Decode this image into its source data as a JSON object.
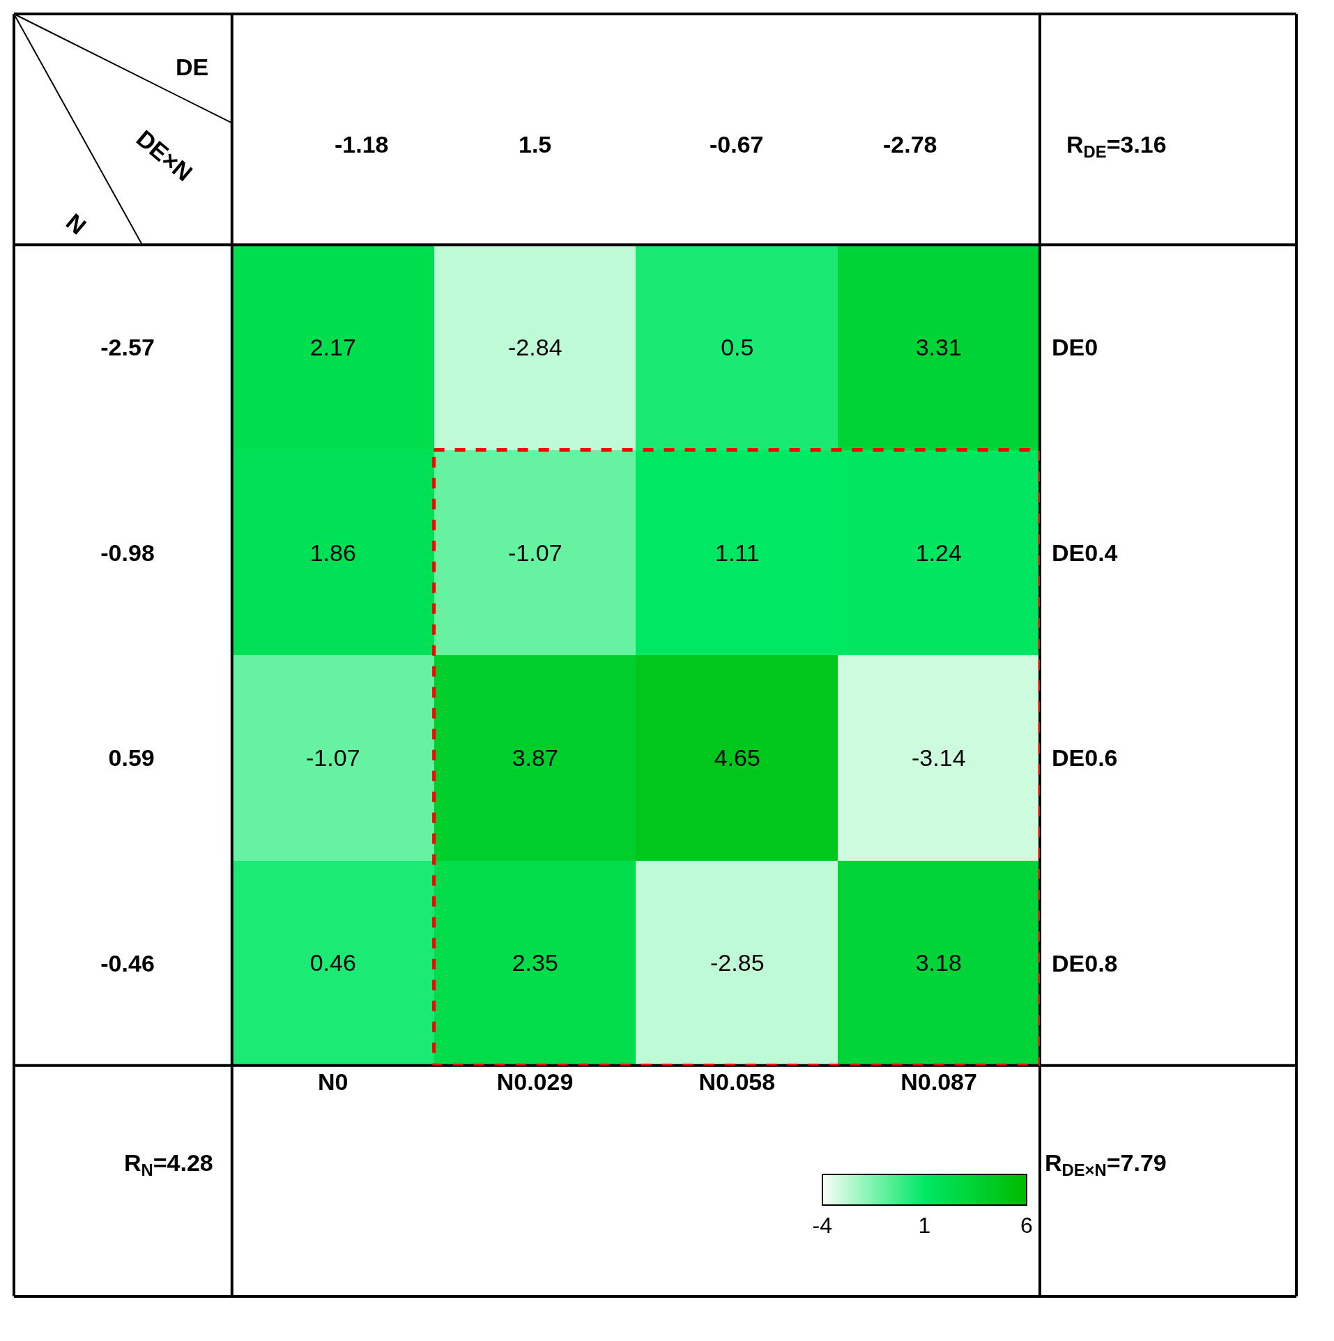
{
  "chart_data": {
    "type": "heatmap",
    "categories": [
      "N0",
      "N0.029",
      "N0.058",
      "N0.087"
    ],
    "y_categories": [
      "-2.57",
      "-0.98",
      "0.59",
      "-0.46"
    ],
    "y2_categories": [
      "DE0",
      "DE0.4",
      "DE0.6",
      "DE0.8"
    ],
    "cells": [
      [
        2.17,
        -2.84,
        0.5,
        3.31
      ],
      [
        1.86,
        -1.07,
        1.11,
        1.24
      ],
      [
        -1.07,
        3.87,
        4.65,
        -3.14
      ],
      [
        0.46,
        2.35,
        -2.85,
        3.18
      ]
    ],
    "data_labels": true,
    "clim": [
      -4,
      6
    ],
    "cticks": [
      -4,
      1,
      6
    ],
    "annotations": [
      "-1.18",
      "1.5",
      "-0.67",
      "-2.78",
      "R$_{DE}$=3.16",
      "R$_{N}$=4.28",
      "R$_{DE×N}$=7.79",
      "DE",
      "DE×N",
      "N"
    ]
  }
}
